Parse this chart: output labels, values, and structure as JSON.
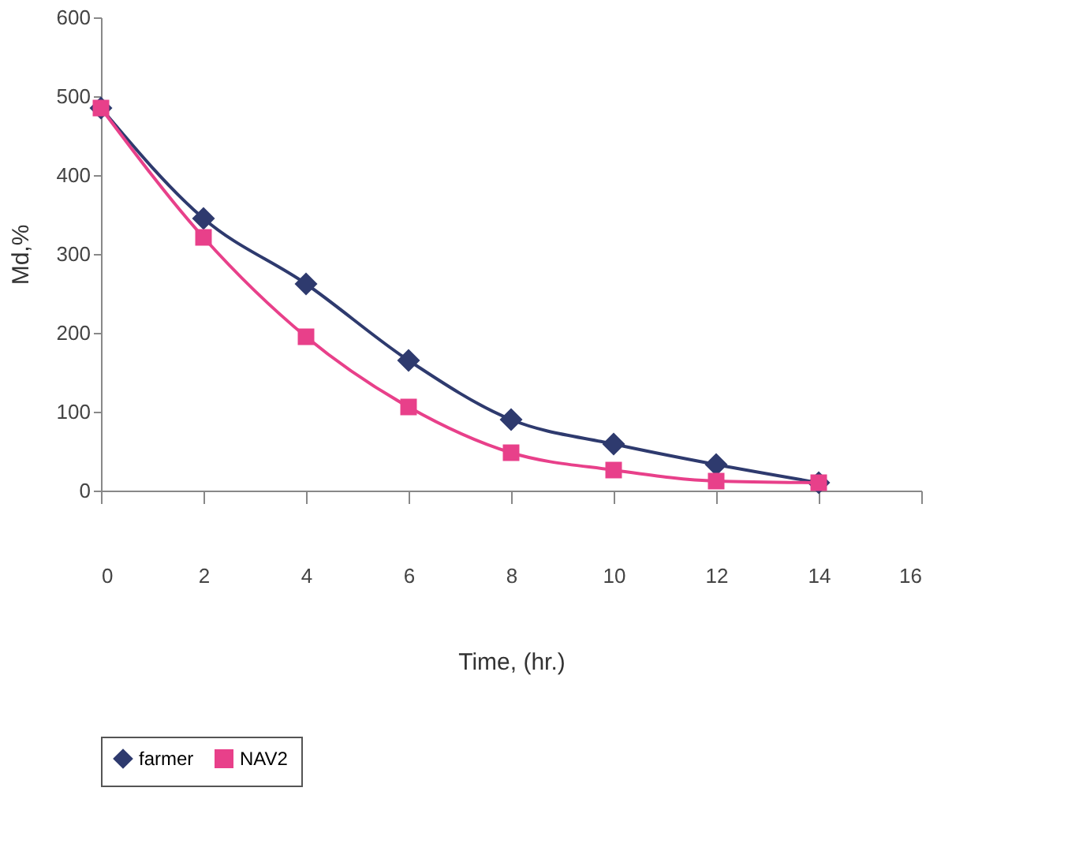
{
  "chart_data": {
    "type": "line",
    "xlabel": "Time, (hr.)",
    "ylabel": "Md,%",
    "x": [
      0,
      2,
      4,
      6,
      8,
      10,
      12,
      14
    ],
    "series": [
      {
        "name": "farmer",
        "color": "#2e3a6e",
        "marker": "diamond",
        "values": [
          485,
          345,
          262,
          165,
          90,
          59,
          33,
          10
        ]
      },
      {
        "name": "NAV2",
        "color": "#e8408a",
        "marker": "square",
        "values": [
          485,
          321,
          195,
          106,
          48,
          26,
          12,
          10
        ]
      }
    ],
    "xlim": [
      0,
      16
    ],
    "xticks": [
      0,
      2,
      4,
      6,
      8,
      10,
      12,
      14,
      16
    ],
    "ylim": [
      0,
      600
    ],
    "yticks": [
      0,
      100,
      200,
      300,
      400,
      500,
      600
    ],
    "grid": false,
    "legend": "bottom",
    "line_style": "solid"
  }
}
